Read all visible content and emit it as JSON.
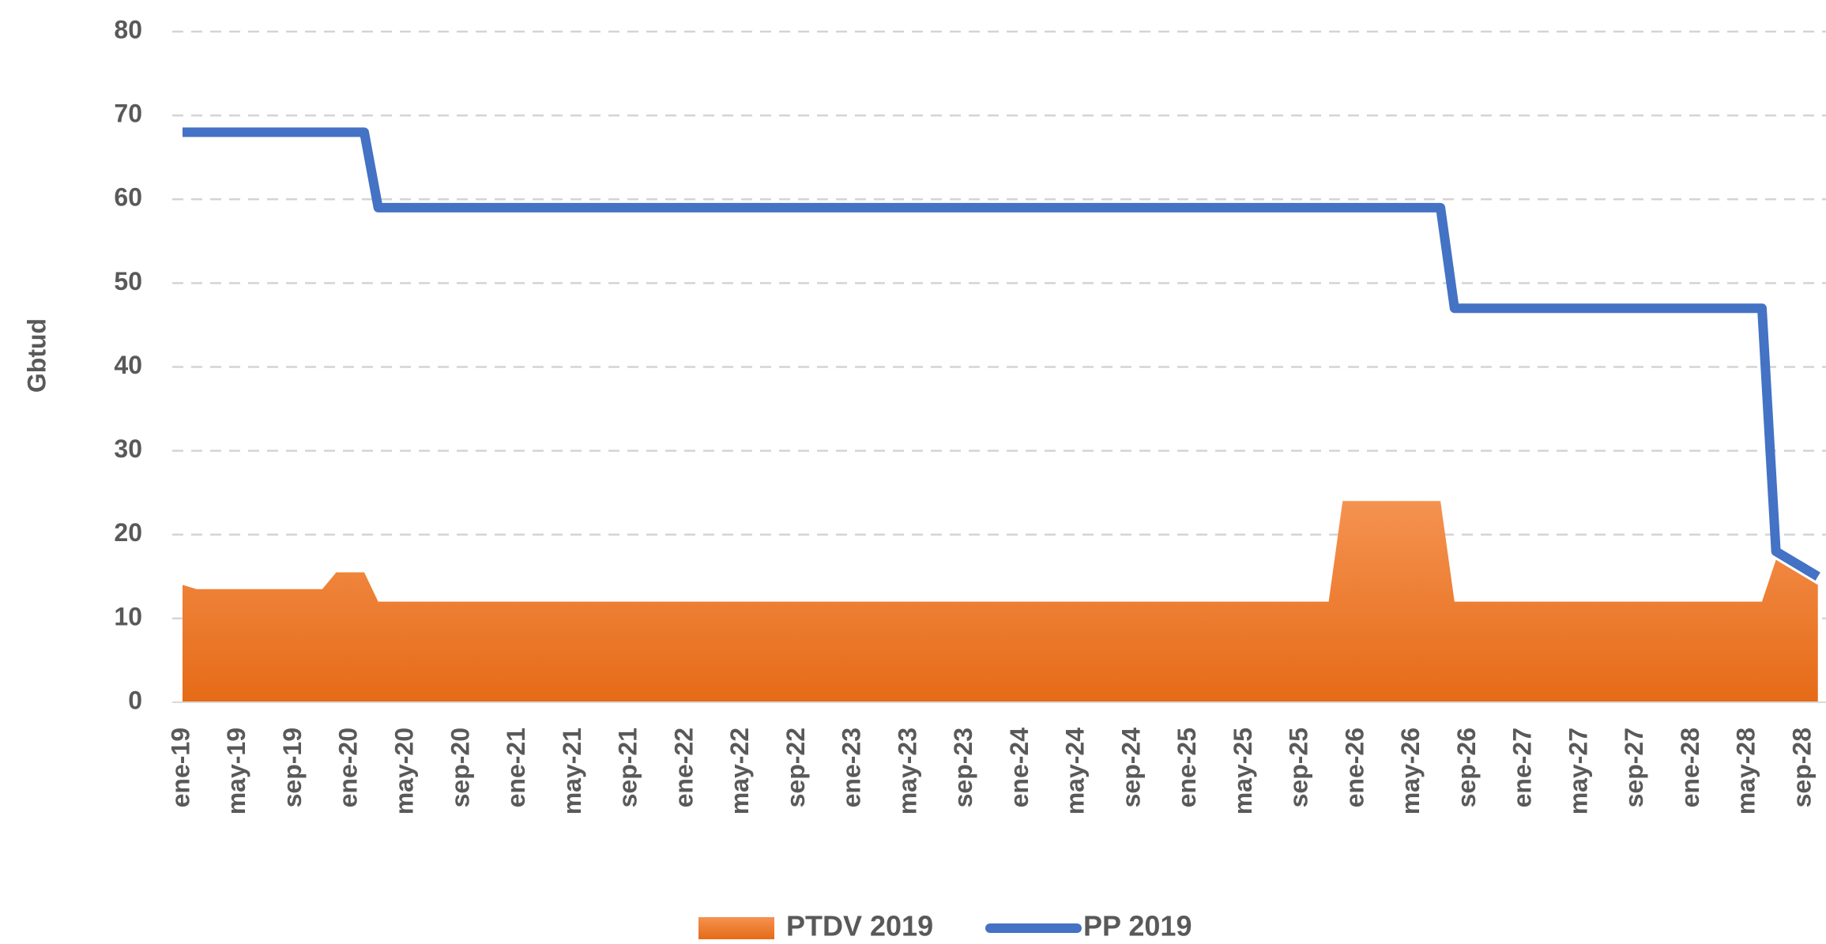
{
  "chart_data": {
    "type": "line",
    "ylabel": "Gbtud",
    "categories": [
      "ene-19",
      null,
      null,
      null,
      "may-19",
      null,
      null,
      null,
      "sep-19",
      null,
      null,
      null,
      "ene-20",
      null,
      null,
      null,
      "may-20",
      null,
      null,
      null,
      "sep-20",
      null,
      null,
      null,
      "ene-21",
      null,
      null,
      null,
      "may-21",
      null,
      null,
      null,
      "sep-21",
      null,
      null,
      null,
      "ene-22",
      null,
      null,
      null,
      "may-22",
      null,
      null,
      null,
      "sep-22",
      null,
      null,
      null,
      "ene-23",
      null,
      null,
      null,
      "may-23",
      null,
      null,
      null,
      "sep-23",
      null,
      null,
      null,
      "ene-24",
      null,
      null,
      null,
      "may-24",
      null,
      null,
      null,
      "sep-24",
      null,
      null,
      null,
      "ene-25",
      null,
      null,
      null,
      "may-25",
      null,
      null,
      null,
      "sep-25",
      null,
      null,
      null,
      "ene-26",
      null,
      null,
      null,
      "may-26",
      null,
      null,
      null,
      "sep-26",
      null,
      null,
      null,
      "ene-27",
      null,
      null,
      null,
      "may-27",
      null,
      null,
      null,
      "sep-27",
      null,
      null,
      null,
      "ene-28",
      null,
      null,
      null,
      "may-28",
      null,
      null,
      null,
      "sep-28",
      null
    ],
    "series": [
      {
        "name": "PTDV 2019",
        "type": "area",
        "color": "#f07d28",
        "values": [
          14,
          13.5,
          13.5,
          13.5,
          13.5,
          13.5,
          13.5,
          13.5,
          13.5,
          13.5,
          13.5,
          15.5,
          15.5,
          15.5,
          12,
          12,
          12,
          12,
          12,
          12,
          12,
          12,
          12,
          12,
          12,
          12,
          12,
          12,
          12,
          12,
          12,
          12,
          12,
          12,
          12,
          12,
          12,
          12,
          12,
          12,
          12,
          12,
          12,
          12,
          12,
          12,
          12,
          12,
          12,
          12,
          12,
          12,
          12,
          12,
          12,
          12,
          12,
          12,
          12,
          12,
          12,
          12,
          12,
          12,
          12,
          12,
          12,
          12,
          12,
          12,
          12,
          12,
          12,
          12,
          12,
          12,
          12,
          12,
          12,
          12,
          12,
          12,
          12,
          24,
          24,
          24,
          24,
          24,
          24,
          24,
          24,
          12,
          12,
          12,
          12,
          12,
          12,
          12,
          12,
          12,
          12,
          12,
          12,
          12,
          12,
          12,
          12,
          12,
          12,
          12,
          12,
          12,
          12,
          12,
          17,
          16,
          15,
          14
        ]
      },
      {
        "name": "PP 2019",
        "type": "line",
        "color": "#4472c4",
        "values": [
          68,
          68,
          68,
          68,
          68,
          68,
          68,
          68,
          68,
          68,
          68,
          68,
          68,
          68,
          59,
          59,
          59,
          59,
          59,
          59,
          59,
          59,
          59,
          59,
          59,
          59,
          59,
          59,
          59,
          59,
          59,
          59,
          59,
          59,
          59,
          59,
          59,
          59,
          59,
          59,
          59,
          59,
          59,
          59,
          59,
          59,
          59,
          59,
          59,
          59,
          59,
          59,
          59,
          59,
          59,
          59,
          59,
          59,
          59,
          59,
          59,
          59,
          59,
          59,
          59,
          59,
          59,
          59,
          59,
          59,
          59,
          59,
          59,
          59,
          59,
          59,
          59,
          59,
          59,
          59,
          59,
          59,
          59,
          59,
          59,
          59,
          59,
          59,
          59,
          59,
          59,
          47,
          47,
          47,
          47,
          47,
          47,
          47,
          47,
          47,
          47,
          47,
          47,
          47,
          47,
          47,
          47,
          47,
          47,
          47,
          47,
          47,
          47,
          47,
          18,
          17,
          16,
          15
        ]
      }
    ],
    "ylim": [
      0,
      80
    ],
    "yticks": [
      0,
      10,
      20,
      30,
      40,
      50,
      60,
      70,
      80
    ],
    "grid": true,
    "legend": "bottom"
  }
}
